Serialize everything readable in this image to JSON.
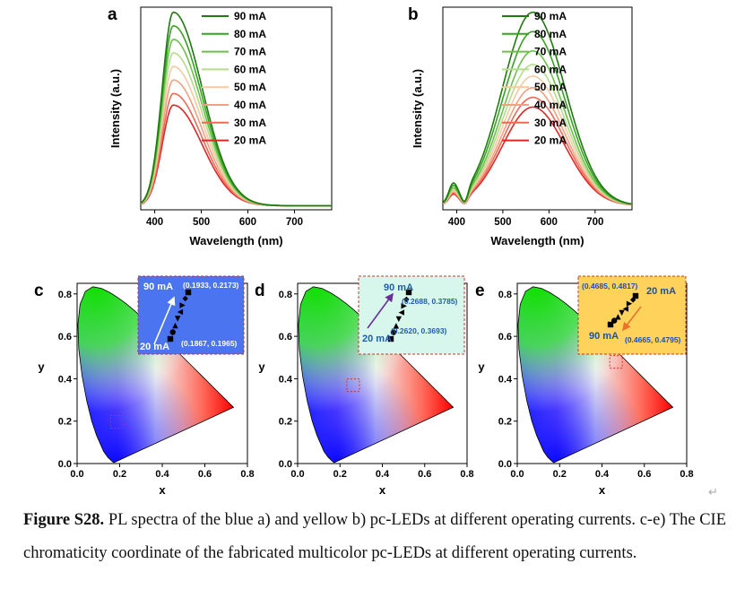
{
  "panels": {
    "a": "a",
    "b": "b",
    "c": "c",
    "d": "d",
    "e": "e"
  },
  "caption": {
    "label": "Figure S28.",
    "text": " PL spectra of the blue a) and yellow b) pc-LEDs at different operating currents. c-e) The CIE chromaticity coordinate of the fabricated multicolor pc-LEDs at different operating currents.",
    "return_mark": "↵"
  },
  "chart_data": [
    {
      "panel": "a",
      "type": "line",
      "xlabel": "Wavelength (nm)",
      "ylabel": "Intensity (a.u.)",
      "xlim": [
        370,
        780
      ],
      "xticks": [
        400,
        500,
        600,
        700
      ],
      "legend_position": "top-right",
      "series": [
        {
          "name": "90 mA",
          "color": "#1f7a0f",
          "peak": 1.0
        },
        {
          "name": "80 mA",
          "color": "#37a224",
          "peak": 0.93
        },
        {
          "name": "70 mA",
          "color": "#6cc04a",
          "peak": 0.86
        },
        {
          "name": "60 mA",
          "color": "#b4dc8c",
          "peak": 0.79
        },
        {
          "name": "50 mA",
          "color": "#f6c9a2",
          "peak": 0.72
        },
        {
          "name": "40 mA",
          "color": "#f2a07e",
          "peak": 0.65
        },
        {
          "name": "30 mA",
          "color": "#ea6a58",
          "peak": 0.58
        },
        {
          "name": "20 mA",
          "color": "#e02626",
          "peak": 0.52
        }
      ],
      "peak_wavelength": 440
    },
    {
      "panel": "b",
      "type": "line",
      "xlabel": "Wavelength (nm)",
      "ylabel": "Intensity (a.u.)",
      "xlim": [
        370,
        780
      ],
      "xticks": [
        400,
        500,
        600,
        700
      ],
      "legend_position": "top-right",
      "series": [
        {
          "name": "90 mA",
          "color": "#1f7a0f",
          "peak": 1.0
        },
        {
          "name": "80 mA",
          "color": "#37a224",
          "peak": 0.9
        },
        {
          "name": "70 mA",
          "color": "#6cc04a",
          "peak": 0.8
        },
        {
          "name": "60 mA",
          "color": "#b4dc8c",
          "peak": 0.73
        },
        {
          "name": "50 mA",
          "color": "#f6c9a2",
          "peak": 0.67
        },
        {
          "name": "40 mA",
          "color": "#f2a07e",
          "peak": 0.61
        },
        {
          "name": "30 mA",
          "color": "#ea6a58",
          "peak": 0.56
        },
        {
          "name": "20 mA",
          "color": "#e02626",
          "peak": 0.51
        }
      ],
      "peak_wavelength": 565
    },
    {
      "panel": "c",
      "type": "scatter",
      "xlabel": "x",
      "ylabel": "y",
      "xlim": [
        0.0,
        0.8
      ],
      "ylim": [
        0.0,
        0.85
      ],
      "xticks": [
        "0.0",
        "0.2",
        "0.4",
        "0.6",
        "0.8"
      ],
      "yticks": [
        "0.0",
        "0.2",
        "0.4",
        "0.6",
        "0.8"
      ],
      "inset_bg": "#4a74f0",
      "inset_label_color": "#ffffff",
      "arrow_color": "#ffffff",
      "high_label": "90 mA",
      "low_label": "20 mA",
      "coord_high": "(0.1933, 0.2173)",
      "coord_low": "(0.1867, 0.1965)",
      "points": [
        [
          0.1867,
          0.1965
        ],
        [
          0.1876,
          0.1995
        ],
        [
          0.1885,
          0.2025
        ],
        [
          0.1894,
          0.2055
        ],
        [
          0.1903,
          0.2085
        ],
        [
          0.1912,
          0.2115
        ],
        [
          0.1922,
          0.2145
        ],
        [
          0.1933,
          0.2173
        ]
      ]
    },
    {
      "panel": "d",
      "type": "scatter",
      "xlabel": "x",
      "ylabel": "y",
      "xlim": [
        0.0,
        0.8
      ],
      "ylim": [
        0.0,
        0.85
      ],
      "xticks": [
        "0.0",
        "0.2",
        "0.4",
        "0.6",
        "0.8"
      ],
      "yticks": [
        "0.0",
        "0.2",
        "0.4",
        "0.6",
        "0.8"
      ],
      "inset_bg": "#d8f7ec",
      "inset_label_color": "#1f5fa8",
      "arrow_color": "#6a2f9a",
      "high_label": "90 mA",
      "low_label": "20 mA",
      "coord_high": "(0.2688, 0.3785)",
      "coord_low": "(0.2620, 0.3693)",
      "points": [
        [
          0.262,
          0.3693
        ],
        [
          0.263,
          0.3706
        ],
        [
          0.264,
          0.3719
        ],
        [
          0.265,
          0.3732
        ],
        [
          0.266,
          0.3745
        ],
        [
          0.267,
          0.3758
        ],
        [
          0.2679,
          0.3771
        ],
        [
          0.2688,
          0.3785
        ]
      ]
    },
    {
      "panel": "e",
      "type": "scatter",
      "xlabel": "x",
      "ylabel": "y",
      "xlim": [
        0.0,
        0.8
      ],
      "ylim": [
        0.0,
        0.85
      ],
      "xticks": [
        "0.0",
        "0.2",
        "0.4",
        "0.6",
        "0.8"
      ],
      "yticks": [
        "0.0",
        "0.2",
        "0.4",
        "0.6",
        "0.8"
      ],
      "inset_bg": "#ffd25c",
      "inset_label_color": "#1f4fa8",
      "arrow_color": "#e8742a",
      "high_label": "90 mA",
      "low_label": "20 mA",
      "coord_high": "(0.4665, 0.4795)",
      "coord_low": "(0.4685, 0.4817)",
      "points": [
        [
          0.4665,
          0.4795
        ],
        [
          0.4668,
          0.4798
        ],
        [
          0.4671,
          0.4801
        ],
        [
          0.4674,
          0.4804
        ],
        [
          0.4677,
          0.4807
        ],
        [
          0.468,
          0.4811
        ],
        [
          0.4683,
          0.4814
        ],
        [
          0.4685,
          0.4817
        ]
      ]
    }
  ]
}
